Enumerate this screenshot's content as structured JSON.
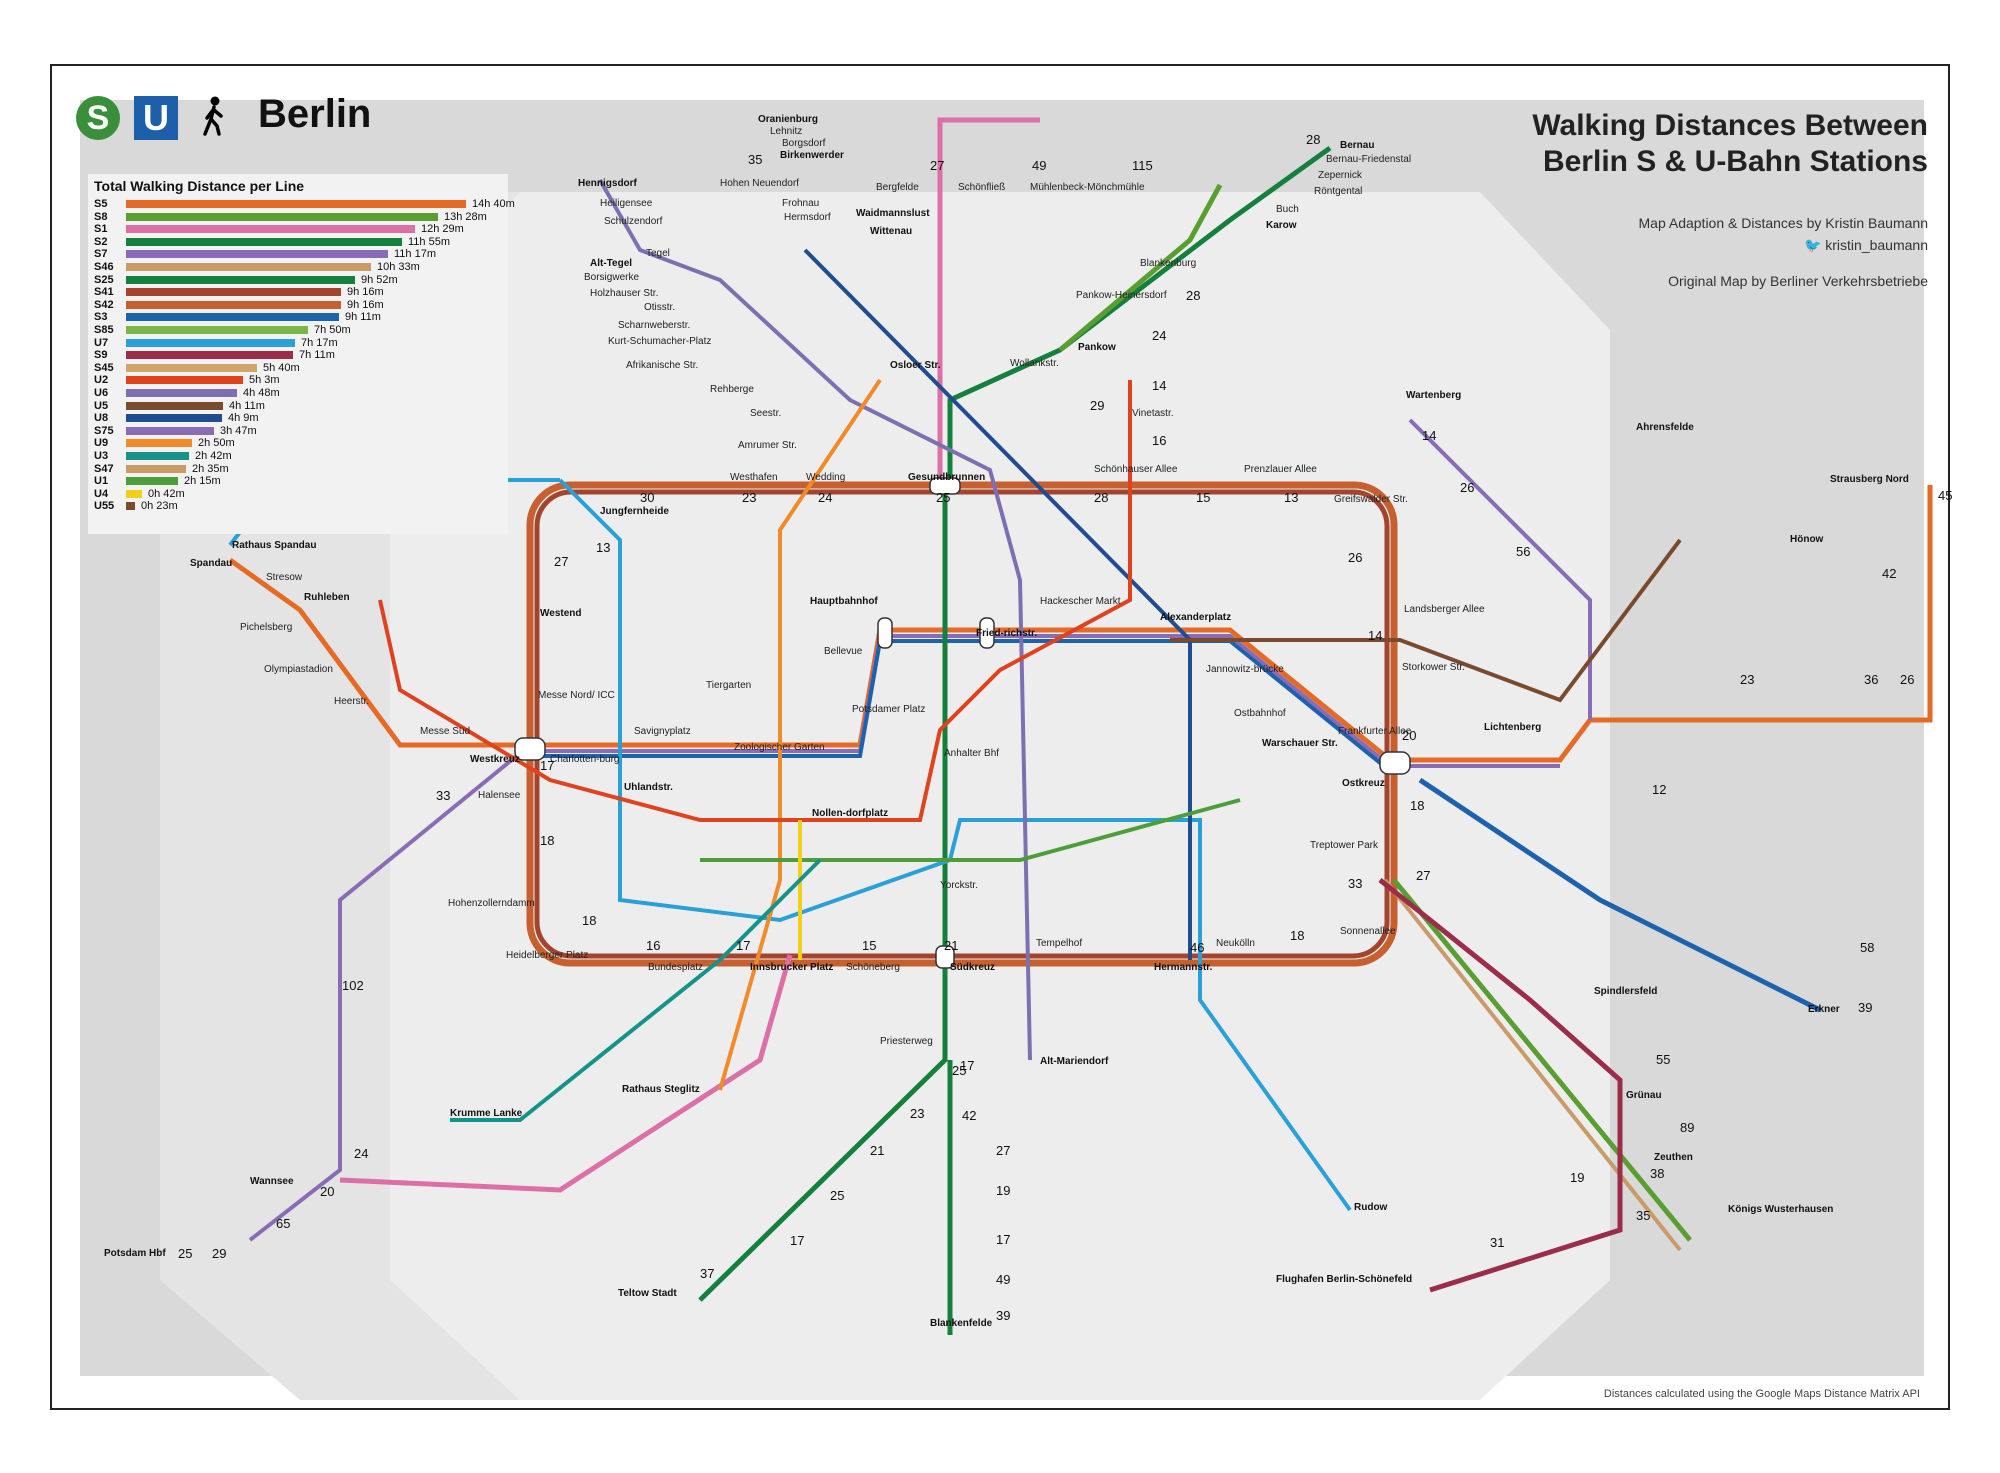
{
  "header": {
    "city": "Berlin",
    "icons": [
      "s-bahn-logo",
      "u-bahn-logo",
      "walking-person-icon"
    ],
    "s_logo_letter": "S",
    "u_logo_letter": "U"
  },
  "title": {
    "line1": "Walking Distances Between",
    "line2": "Berlin S & U-Bahn Stations"
  },
  "credits": {
    "adaption": "Map Adaption & Distances by Kristin Baumann",
    "twitter": "kristin_baumann",
    "original": "Original Map by Berliner Verkehrsbetriebe"
  },
  "footnote": "Distances calculated using the Google Maps Distance Matrix API",
  "legend": {
    "title": "Total Walking Distance per Line",
    "lines": [
      {
        "name": "S5",
        "value": "14h 40m",
        "minutes": 880,
        "color": "#e46a25"
      },
      {
        "name": "S8",
        "value": "13h 28m",
        "minutes": 808,
        "color": "#5a9e32"
      },
      {
        "name": "S1",
        "value": "12h 29m",
        "minutes": 749,
        "color": "#dc6fa6"
      },
      {
        "name": "S2",
        "value": "11h 55m",
        "minutes": 715,
        "color": "#15803d"
      },
      {
        "name": "S7",
        "value": "11h 17m",
        "minutes": 677,
        "color": "#8a6bb5"
      },
      {
        "name": "S46",
        "value": "10h 33m",
        "minutes": 633,
        "color": "#c89b68"
      },
      {
        "name": "S25",
        "value": "9h 52m",
        "minutes": 592,
        "color": "#15803d"
      },
      {
        "name": "S41",
        "value": "9h 16m",
        "minutes": 556,
        "color": "#a3452e"
      },
      {
        "name": "S42",
        "value": "9h 16m",
        "minutes": 556,
        "color": "#c6602e"
      },
      {
        "name": "S3",
        "value": "9h 11m",
        "minutes": 551,
        "color": "#1d62ad"
      },
      {
        "name": "S85",
        "value": "7h 50m",
        "minutes": 470,
        "color": "#7ab648"
      },
      {
        "name": "U7",
        "value": "7h 17m",
        "minutes": 437,
        "color": "#2aa0d8"
      },
      {
        "name": "S9",
        "value": "7h 11m",
        "minutes": 431,
        "color": "#9b2d4a"
      },
      {
        "name": "S45",
        "value": "5h 40m",
        "minutes": 340,
        "color": "#d2a56b"
      },
      {
        "name": "U2",
        "value": "5h 3m",
        "minutes": 303,
        "color": "#e0421e"
      },
      {
        "name": "U6",
        "value": "4h 48m",
        "minutes": 288,
        "color": "#7d6fb0"
      },
      {
        "name": "U5",
        "value": "4h 11m",
        "minutes": 251,
        "color": "#7a4a2f"
      },
      {
        "name": "U8",
        "value": "4h 9m",
        "minutes": 249,
        "color": "#1f4d8f"
      },
      {
        "name": "S75",
        "value": "3h 47m",
        "minutes": 227,
        "color": "#8a6bb5"
      },
      {
        "name": "U9",
        "value": "2h 50m",
        "minutes": 170,
        "color": "#f08a2a"
      },
      {
        "name": "U3",
        "value": "2h 42m",
        "minutes": 162,
        "color": "#15938a"
      },
      {
        "name": "S47",
        "value": "2h 35m",
        "minutes": 155,
        "color": "#c89b68"
      },
      {
        "name": "U1",
        "value": "2h 15m",
        "minutes": 135,
        "color": "#4d9e3a"
      },
      {
        "name": "U4",
        "value": "0h 42m",
        "minutes": 42,
        "color": "#f2d019"
      },
      {
        "name": "U55",
        "value": "0h 23m",
        "minutes": 23,
        "color": "#7a4a2f"
      }
    ]
  },
  "stations": [
    {
      "id": "oranienburg",
      "label": "Oranienburg",
      "bold": true
    },
    {
      "id": "lehnitz",
      "label": "Lehnitz"
    },
    {
      "id": "borgsdorf",
      "label": "Borgsdorf"
    },
    {
      "id": "birkenwerder",
      "label": "Birkenwerder",
      "bold": true
    },
    {
      "id": "hohen_neuendorf",
      "label": "Hohen Neuendorf"
    },
    {
      "id": "bergfelde",
      "label": "Bergfelde"
    },
    {
      "id": "schoenfliess",
      "label": "Schönfließ"
    },
    {
      "id": "muehlenbeck",
      "label": "Mühlenbeck-Mönchmühle"
    },
    {
      "id": "frohnau",
      "label": "Frohnau"
    },
    {
      "id": "hermsdorf",
      "label": "Hermsdorf"
    },
    {
      "id": "waidmannslust",
      "label": "Waidmannslust",
      "bold": true
    },
    {
      "id": "wittenau",
      "label": "Wittenau",
      "bold": true
    },
    {
      "id": "hennigsdorf",
      "label": "Hennigsdorf",
      "bold": true
    },
    {
      "id": "heiligensee",
      "label": "Heiligensee"
    },
    {
      "id": "schulzendorf",
      "label": "Schulzendorf"
    },
    {
      "id": "tegel",
      "label": "Tegel"
    },
    {
      "id": "alt_tegel",
      "label": "Alt-Tegel",
      "bold": true
    },
    {
      "id": "borsigwerke",
      "label": "Borsigwerke"
    },
    {
      "id": "holzhauser",
      "label": "Holzhauser Str."
    },
    {
      "id": "otisstr",
      "label": "Otisstr."
    },
    {
      "id": "scharnweber",
      "label": "Scharnweberstr."
    },
    {
      "id": "kurt_schumacher",
      "label": "Kurt-Schumacher-Platz"
    },
    {
      "id": "afrikanische",
      "label": "Afrikanische Str."
    },
    {
      "id": "rehberge",
      "label": "Rehberge"
    },
    {
      "id": "seestr",
      "label": "Seestr."
    },
    {
      "id": "amrumer",
      "label": "Amrumer Str."
    },
    {
      "id": "westhafen",
      "label": "Westhafen"
    },
    {
      "id": "wedding",
      "label": "Wedding"
    },
    {
      "id": "gesundbrunnen",
      "label": "Gesundbrunnen",
      "bold": true
    },
    {
      "id": "bernau",
      "label": "Bernau",
      "bold": true
    },
    {
      "id": "bernau_friedenstal",
      "label": "Bernau-Friedenstal"
    },
    {
      "id": "zepernick",
      "label": "Zepernick"
    },
    {
      "id": "roentgental",
      "label": "Röntgental"
    },
    {
      "id": "buch",
      "label": "Buch"
    },
    {
      "id": "karow",
      "label": "Karow",
      "bold": true
    },
    {
      "id": "blankenburg",
      "label": "Blankenburg"
    },
    {
      "id": "pankow_heinersdorf",
      "label": "Pankow-Heinersdorf"
    },
    {
      "id": "pankow",
      "label": "Pankow",
      "bold": true
    },
    {
      "id": "wollankstr",
      "label": "Wollankstr."
    },
    {
      "id": "vinetastr",
      "label": "Vinetastr."
    },
    {
      "id": "schoenhauser",
      "label": "Schönhauser Allee"
    },
    {
      "id": "prenzlauer",
      "label": "Prenzlauer Allee"
    },
    {
      "id": "greifswalder",
      "label": "Greifswalder Str."
    },
    {
      "id": "landsberger",
      "label": "Landsberger Allee"
    },
    {
      "id": "storkower",
      "label": "Storkower Str."
    },
    {
      "id": "frankfurter_allee",
      "label": "Frankfurter Allee"
    },
    {
      "id": "ostkreuz",
      "label": "Ostkreuz",
      "bold": true
    },
    {
      "id": "treptower_park",
      "label": "Treptower Park"
    },
    {
      "id": "sonnenallee",
      "label": "Sonnenallee"
    },
    {
      "id": "neukoelln",
      "label": "Neukölln"
    },
    {
      "id": "hermannstr",
      "label": "Hermannstr.",
      "bold": true
    },
    {
      "id": "tempelhof",
      "label": "Tempelhof"
    },
    {
      "id": "suedkreuz",
      "label": "Südkreuz",
      "bold": true
    },
    {
      "id": "schoeneberg",
      "label": "Schöneberg"
    },
    {
      "id": "innsbrucker",
      "label": "Innsbrucker Platz",
      "bold": true
    },
    {
      "id": "bundesplatz",
      "label": "Bundesplatz"
    },
    {
      "id": "heidelberger",
      "label": "Heidelberger Platz"
    },
    {
      "id": "hohenzollerndamm",
      "label": "Hohenzollerndamm"
    },
    {
      "id": "halensee",
      "label": "Halensee"
    },
    {
      "id": "westkreuz",
      "label": "Westkreuz",
      "bold": true
    },
    {
      "id": "messe_sued",
      "label": "Messe Süd"
    },
    {
      "id": "heerstr",
      "label": "Heerstr."
    },
    {
      "id": "olympiastadion",
      "label": "Olympiastadion"
    },
    {
      "id": "pichelsberg",
      "label": "Pichelsberg"
    },
    {
      "id": "spandau",
      "label": "Spandau",
      "bold": true
    },
    {
      "id": "stresow",
      "label": "Stresow"
    },
    {
      "id": "jungfernheide",
      "label": "Jungfernheide",
      "bold": true
    },
    {
      "id": "westend",
      "label": "Westend",
      "bold": true
    },
    {
      "id": "messe_nord",
      "label": "Messe Nord/ ICC"
    },
    {
      "id": "charlottenburg",
      "label": "Charlotten-burg"
    },
    {
      "id": "savignyplatz",
      "label": "Savignyplatz"
    },
    {
      "id": "zoo",
      "label": "Zoologischer Garten"
    },
    {
      "id": "tiergarten",
      "label": "Tiergarten"
    },
    {
      "id": "bellevue",
      "label": "Bellevue"
    },
    {
      "id": "hauptbahnhof",
      "label": "Hauptbahnhof",
      "bold": true
    },
    {
      "id": "friedrichstr",
      "label": "Fried-richstr.",
      "bold": true
    },
    {
      "id": "hackescher",
      "label": "Hackescher Markt"
    },
    {
      "id": "alexanderplatz",
      "label": "Alexanderplatz",
      "bold": true
    },
    {
      "id": "jannowitz",
      "label": "Jannowitz-brücke"
    },
    {
      "id": "ostbahnhof",
      "label": "Ostbahnhof"
    },
    {
      "id": "warschauer",
      "label": "Warschauer Str.",
      "bold": true
    },
    {
      "id": "potsdamer",
      "label": "Potsdamer Platz"
    },
    {
      "id": "anhalter",
      "label": "Anhalter Bhf"
    },
    {
      "id": "yorckstr",
      "label": "Yorckstr."
    },
    {
      "id": "priesterweg",
      "label": "Priesterweg"
    },
    {
      "id": "lichtenberg",
      "label": "Lichtenberg",
      "bold": true
    },
    {
      "id": "wartenberg",
      "label": "Wartenberg",
      "bold": true
    },
    {
      "id": "ahrensfelde",
      "label": "Ahrensfelde",
      "bold": true
    },
    {
      "id": "strausberg_nord",
      "label": "Strausberg Nord",
      "bold": true
    },
    {
      "id": "hoenow",
      "label": "Hönow",
      "bold": true
    },
    {
      "id": "erkner",
      "label": "Erkner",
      "bold": true
    },
    {
      "id": "spindlersfeld",
      "label": "Spindlersfeld",
      "bold": true
    },
    {
      "id": "gruenau",
      "label": "Grünau",
      "bold": true
    },
    {
      "id": "zeuthen",
      "label": "Zeuthen",
      "bold": true
    },
    {
      "id": "koenigs_wusterhausen",
      "label": "Königs Wusterhausen",
      "bold": true
    },
    {
      "id": "flughafen",
      "label": "Flughafen Berlin-Schönefeld",
      "bold": true
    },
    {
      "id": "rudow",
      "label": "Rudow",
      "bold": true
    },
    {
      "id": "alt_mariendorf",
      "label": "Alt-Mariendorf",
      "bold": true
    },
    {
      "id": "blankenfelde",
      "label": "Blankenfelde",
      "bold": true
    },
    {
      "id": "teltow_stadt",
      "label": "Teltow Stadt",
      "bold": true
    },
    {
      "id": "wannsee",
      "label": "Wannsee",
      "bold": true
    },
    {
      "id": "potsdam_hbf",
      "label": "Potsdam Hbf",
      "bold": true
    },
    {
      "id": "krumme_lanke",
      "label": "Krumme Lanke",
      "bold": true
    },
    {
      "id": "rathaus_spandau",
      "label": "Rathaus Spandau",
      "bold": true
    },
    {
      "id": "rathaus_steglitz",
      "label": "Rathaus Steglitz",
      "bold": true
    },
    {
      "id": "nollendorfplatz",
      "label": "Nollen-dorfplatz",
      "bold": true
    },
    {
      "id": "uhlandstr",
      "label": "Uhlandstr.",
      "bold": true
    },
    {
      "id": "osloer",
      "label": "Osloer Str.",
      "bold": true
    },
    {
      "id": "ruhleben",
      "label": "Ruhleben",
      "bold": true
    }
  ],
  "map_colors": {
    "background": "#d9d9d9",
    "inner_area": "#ededed",
    "ring_outer": "#c6602e",
    "ring_inner": "#a3452e"
  }
}
